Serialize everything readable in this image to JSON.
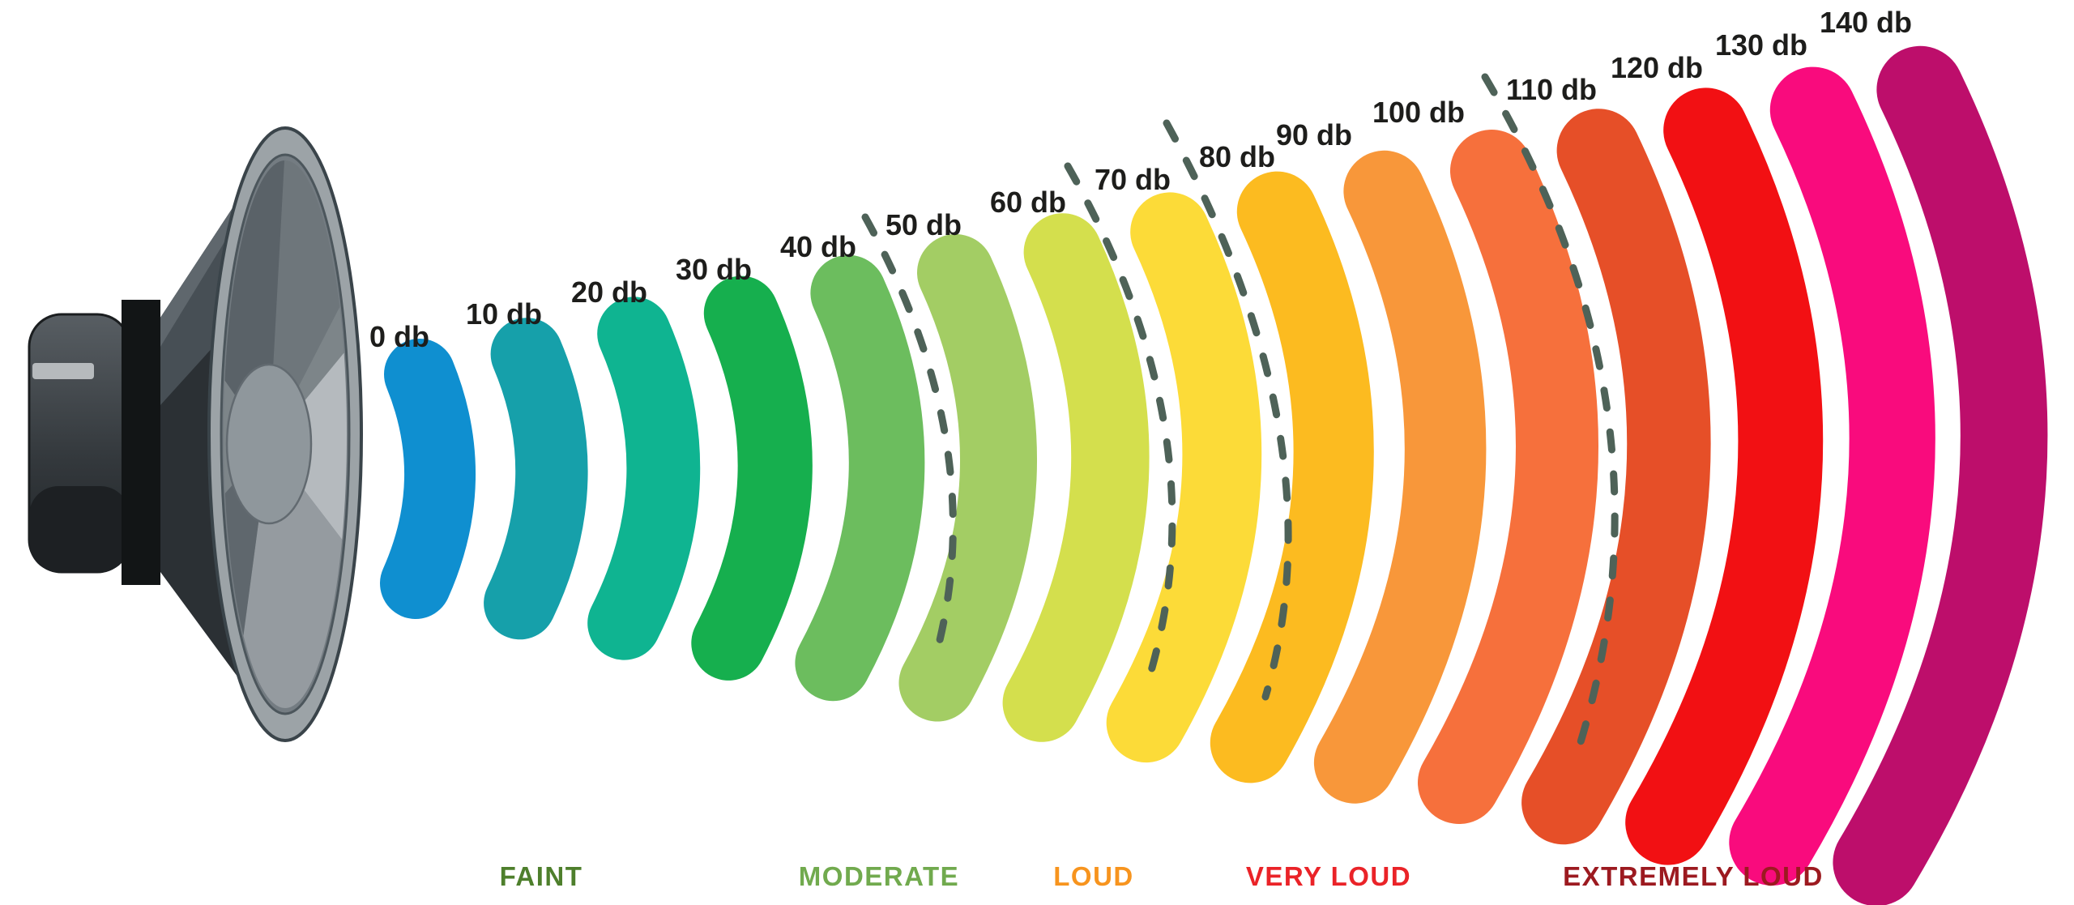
{
  "figure": {
    "description": "Decibel sound level scale infographic with loudspeaker emitting colored sound wave arcs",
    "background_color": "#ffffff",
    "unit": "db"
  },
  "speaker": {
    "name": "loudspeaker",
    "facing": "right",
    "body_color": "#32383c",
    "rim_color": "#9ca3a7"
  },
  "scale": {
    "levels": [
      {
        "db": 0,
        "label": "0 db",
        "color": "#0f8fd0",
        "category": "FAINT"
      },
      {
        "db": 10,
        "label": "10 db",
        "color": "#16a0aa",
        "category": "FAINT"
      },
      {
        "db": 20,
        "label": "20 db",
        "color": "#0fb491",
        "category": "FAINT"
      },
      {
        "db": 30,
        "label": "30 db",
        "color": "#16af4e",
        "category": "FAINT"
      },
      {
        "db": 40,
        "label": "40 db",
        "color": "#6cbd5e",
        "category": "FAINT"
      },
      {
        "db": 50,
        "label": "50 db",
        "color": "#a3cd64",
        "category": "MODERATE"
      },
      {
        "db": 60,
        "label": "60 db",
        "color": "#d4df4d",
        "category": "MODERATE"
      },
      {
        "db": 70,
        "label": "70 db",
        "color": "#fcdb38",
        "category": "LOUD"
      },
      {
        "db": 80,
        "label": "80 db",
        "color": "#fcbb20",
        "category": "VERY LOUD"
      },
      {
        "db": 90,
        "label": "90 db",
        "color": "#f8973a",
        "category": "VERY LOUD"
      },
      {
        "db": 100,
        "label": "100 db",
        "color": "#f6703c",
        "category": "VERY LOUD"
      },
      {
        "db": 110,
        "label": "110 db",
        "color": "#e64f28",
        "category": "EXTREMELY LOUD"
      },
      {
        "db": 120,
        "label": "120 db",
        "color": "#f21013",
        "category": "EXTREMELY LOUD"
      },
      {
        "db": 130,
        "label": "130 db",
        "color": "#f90b7d",
        "category": "EXTREMELY LOUD"
      },
      {
        "db": 140,
        "label": "140 db",
        "color": "#bd0e6b",
        "category": "EXTREMELY LOUD"
      }
    ],
    "separators": {
      "style": "dashed",
      "color": "#4e6258",
      "after_db": [
        40,
        60,
        70,
        100
      ]
    }
  },
  "categories": [
    {
      "label": "FAINT",
      "color": "#4e7f2c",
      "db_range": [
        0,
        40
      ]
    },
    {
      "label": "MODERATE",
      "color": "#71aa4e",
      "db_range": [
        50,
        60
      ]
    },
    {
      "label": "LOUD",
      "color": "#f7941e",
      "db_range": [
        70,
        70
      ]
    },
    {
      "label": "VERY LOUD",
      "color": "#ea2328",
      "db_range": [
        80,
        100
      ]
    },
    {
      "label": "EXTREMELY LOUD",
      "color": "#9c1a20",
      "db_range": [
        110,
        140
      ]
    }
  ]
}
